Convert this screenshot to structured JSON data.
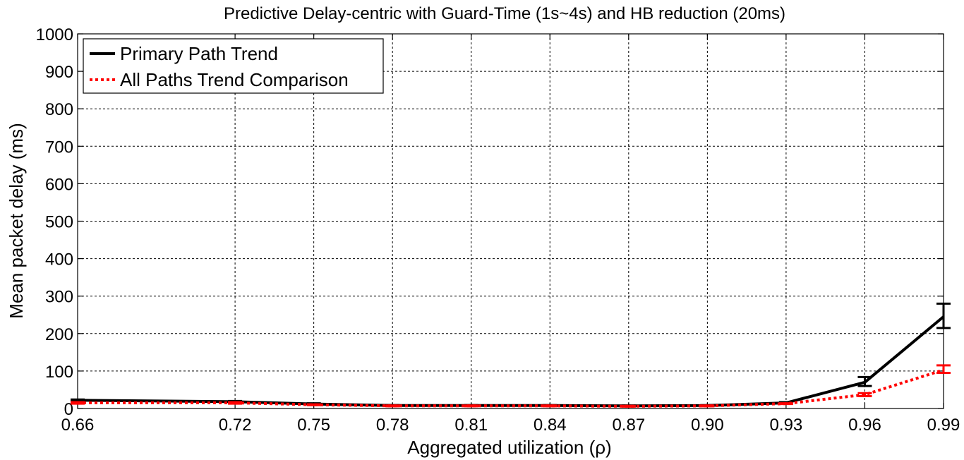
{
  "chart_data": {
    "type": "line",
    "title": "Predictive Delay-centric with Guard-Time (1s~4s) and HB reduction (20ms)",
    "xlabel": "Aggregated utilization (ρ)",
    "ylabel": "Mean packet delay (ms)",
    "xlim": [
      0.66,
      0.99
    ],
    "ylim": [
      0,
      1000
    ],
    "x_ticks": [
      "0.66",
      "0.72",
      "0.75",
      "0.78",
      "0.81",
      "0.84",
      "0.87",
      "0.90",
      "0.93",
      "0.96",
      "0.99"
    ],
    "y_ticks": [
      "0",
      "100",
      "200",
      "300",
      "400",
      "500",
      "600",
      "700",
      "800",
      "900",
      "1000"
    ],
    "grid": true,
    "legend_position": "top-left",
    "series": [
      {
        "name": "Primary Path Trend",
        "color": "#000000",
        "dash": "solid",
        "x": [
          0.66,
          0.72,
          0.75,
          0.78,
          0.81,
          0.84,
          0.87,
          0.9,
          0.93,
          0.96,
          0.99
        ],
        "y": [
          22,
          18,
          12,
          8,
          8,
          8,
          7,
          8,
          15,
          70,
          245
        ],
        "err_low": [
          20,
          16,
          10,
          7,
          7,
          7,
          6,
          7,
          13,
          60,
          215
        ],
        "err_high": [
          24,
          20,
          14,
          9,
          9,
          9,
          8,
          9,
          17,
          84,
          280
        ]
      },
      {
        "name": "All Paths Trend Comparison",
        "color": "#ff0000",
        "dash": "dotted",
        "x": [
          0.66,
          0.72,
          0.75,
          0.78,
          0.81,
          0.84,
          0.87,
          0.9,
          0.93,
          0.96,
          0.99
        ],
        "y": [
          15,
          15,
          10,
          7,
          7,
          7,
          6,
          7,
          13,
          37,
          103
        ],
        "err_low": [
          13,
          13,
          9,
          6,
          6,
          6,
          5,
          6,
          12,
          33,
          95
        ],
        "err_high": [
          17,
          17,
          11,
          8,
          8,
          8,
          7,
          8,
          14,
          41,
          115
        ]
      }
    ]
  }
}
